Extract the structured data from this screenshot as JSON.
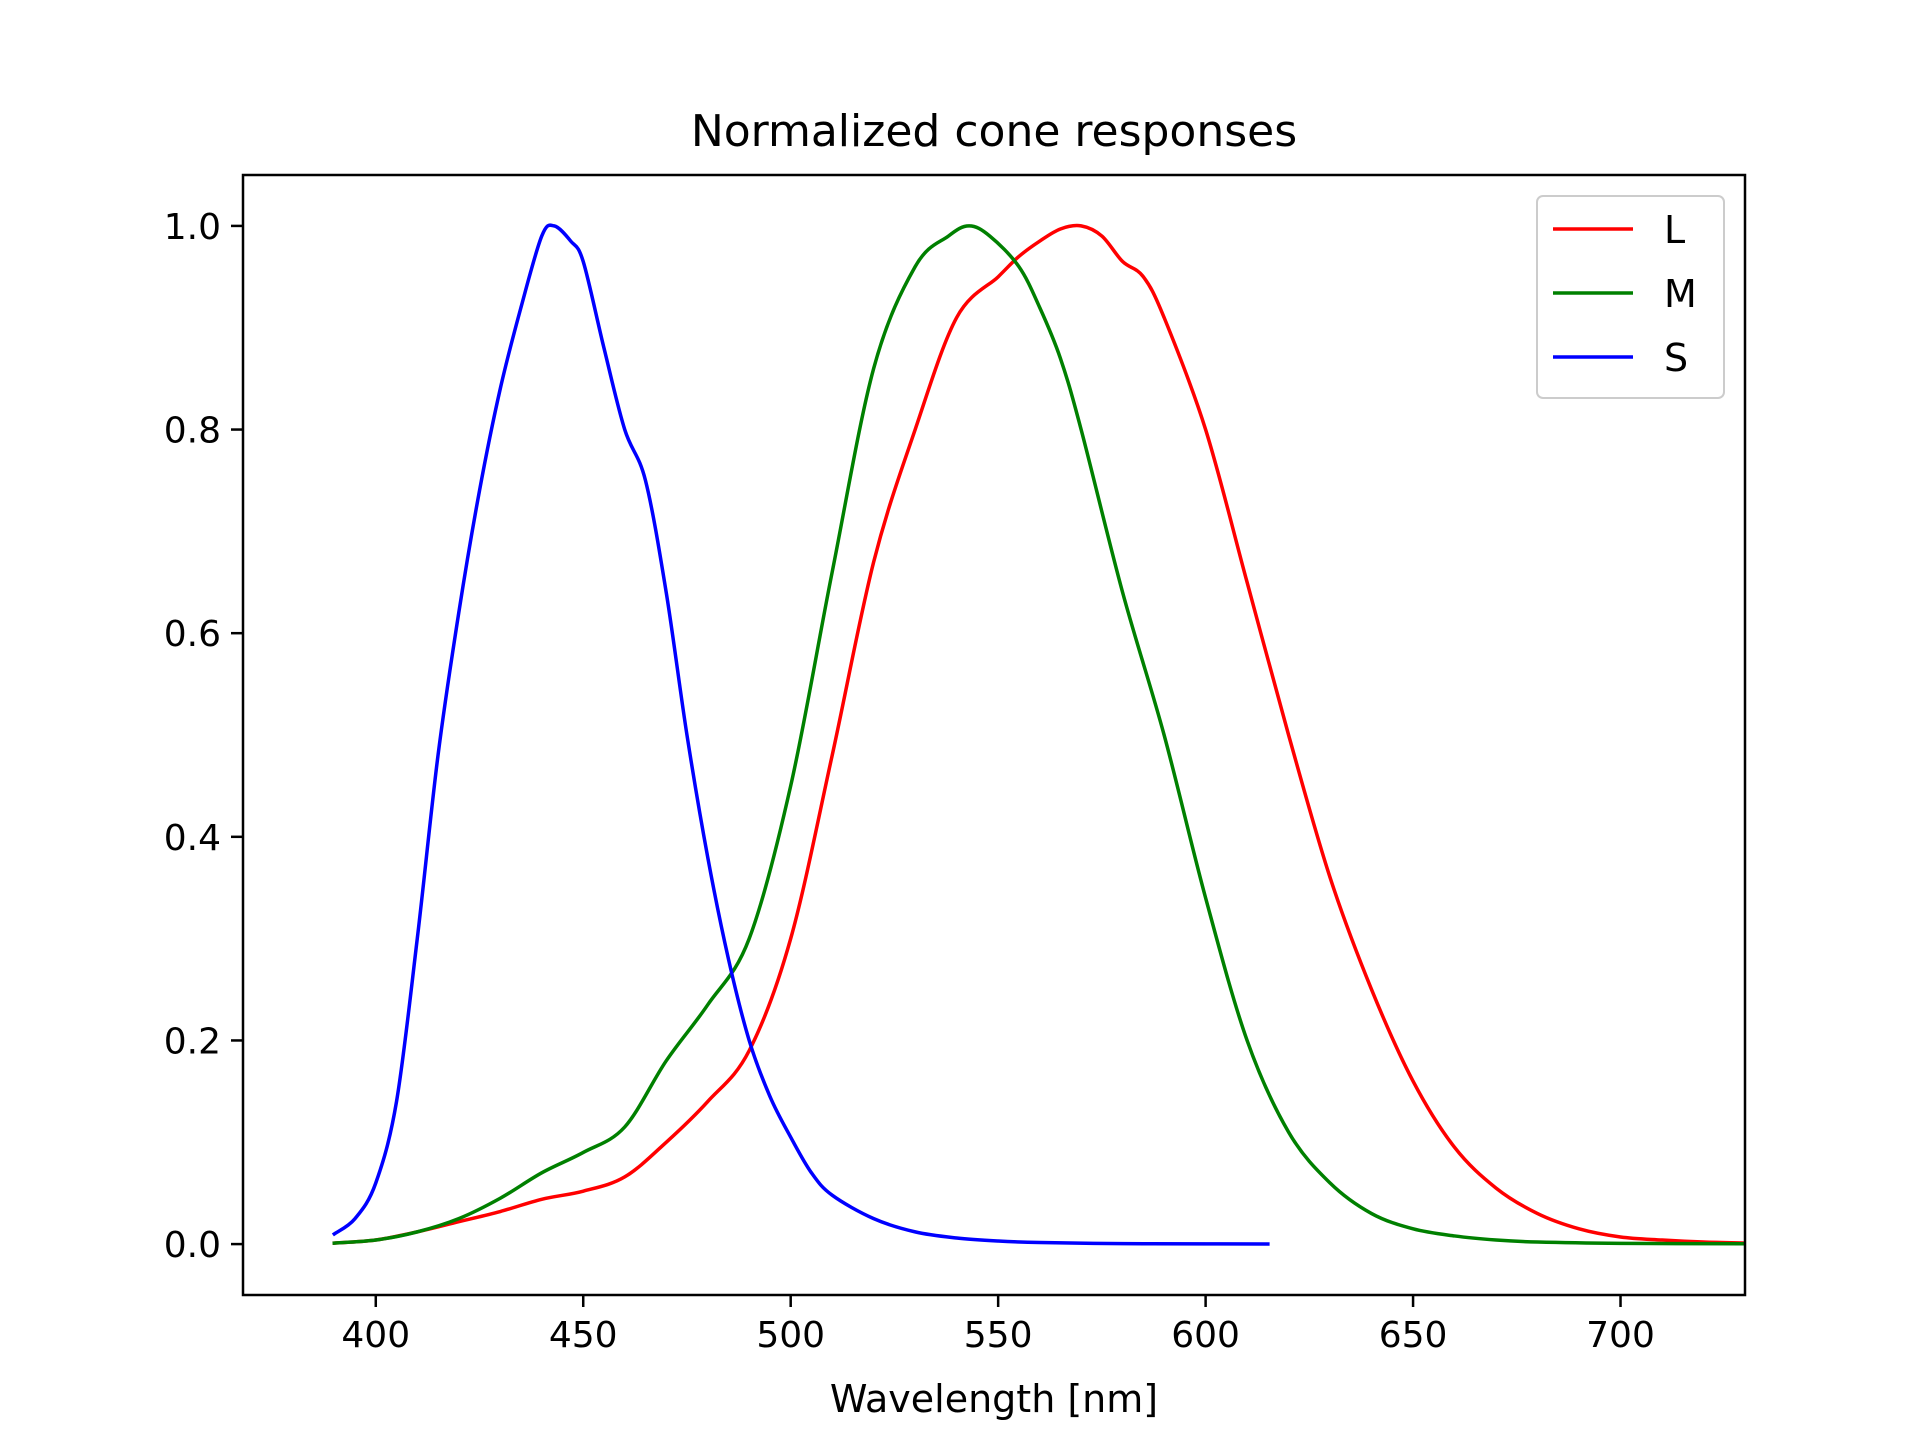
{
  "chart_data": {
    "type": "line",
    "title": "Normalized cone responses",
    "xlabel": "Wavelength [nm]",
    "ylabel": "",
    "xlim": [
      368,
      730
    ],
    "ylim": [
      -0.05,
      1.05
    ],
    "xticks": [
      400,
      450,
      500,
      550,
      600,
      650,
      700
    ],
    "yticks": [
      0.0,
      0.2,
      0.4,
      0.6,
      0.8,
      1.0
    ],
    "xtick_labels": [
      "400",
      "450",
      "500",
      "550",
      "600",
      "650",
      "700"
    ],
    "ytick_labels": [
      "0.0",
      "0.2",
      "0.4",
      "0.6",
      "0.8",
      "1.0"
    ],
    "grid": false,
    "legend_position": "top-right",
    "series": [
      {
        "name": "L",
        "color": "#ff0000",
        "points": [
          [
            390,
            0.001
          ],
          [
            400,
            0.004
          ],
          [
            410,
            0.012
          ],
          [
            420,
            0.022
          ],
          [
            430,
            0.032
          ],
          [
            440,
            0.044
          ],
          [
            450,
            0.052
          ],
          [
            460,
            0.066
          ],
          [
            470,
            0.1
          ],
          [
            480,
            0.14
          ],
          [
            490,
            0.19
          ],
          [
            500,
            0.3
          ],
          [
            510,
            0.48
          ],
          [
            520,
            0.67
          ],
          [
            530,
            0.8
          ],
          [
            540,
            0.91
          ],
          [
            550,
            0.95
          ],
          [
            555,
            0.97
          ],
          [
            560,
            0.985
          ],
          [
            565,
            0.997
          ],
          [
            570,
            1.0
          ],
          [
            575,
            0.99
          ],
          [
            580,
            0.965
          ],
          [
            585,
            0.95
          ],
          [
            590,
            0.91
          ],
          [
            600,
            0.8
          ],
          [
            610,
            0.65
          ],
          [
            620,
            0.5
          ],
          [
            630,
            0.36
          ],
          [
            640,
            0.25
          ],
          [
            650,
            0.16
          ],
          [
            660,
            0.095
          ],
          [
            670,
            0.055
          ],
          [
            680,
            0.03
          ],
          [
            690,
            0.015
          ],
          [
            700,
            0.007
          ],
          [
            710,
            0.004
          ],
          [
            720,
            0.002
          ],
          [
            730,
            0.001
          ]
        ]
      },
      {
        "name": "M",
        "color": "#008000",
        "points": [
          [
            390,
            0.001
          ],
          [
            400,
            0.004
          ],
          [
            410,
            0.012
          ],
          [
            420,
            0.025
          ],
          [
            430,
            0.045
          ],
          [
            440,
            0.07
          ],
          [
            450,
            0.09
          ],
          [
            460,
            0.115
          ],
          [
            470,
            0.18
          ],
          [
            480,
            0.235
          ],
          [
            490,
            0.3
          ],
          [
            500,
            0.45
          ],
          [
            510,
            0.66
          ],
          [
            520,
            0.86
          ],
          [
            530,
            0.96
          ],
          [
            538,
            0.99
          ],
          [
            543,
            1.0
          ],
          [
            548,
            0.99
          ],
          [
            555,
            0.96
          ],
          [
            560,
            0.92
          ],
          [
            565,
            0.87
          ],
          [
            570,
            0.8
          ],
          [
            580,
            0.64
          ],
          [
            590,
            0.5
          ],
          [
            600,
            0.34
          ],
          [
            610,
            0.2
          ],
          [
            620,
            0.11
          ],
          [
            630,
            0.06
          ],
          [
            640,
            0.03
          ],
          [
            650,
            0.015
          ],
          [
            660,
            0.008
          ],
          [
            670,
            0.004
          ],
          [
            680,
            0.002
          ],
          [
            700,
            0.0007
          ],
          [
            730,
            0.0003
          ]
        ]
      },
      {
        "name": "S",
        "color": "#0000ff",
        "points": [
          [
            390,
            0.01
          ],
          [
            395,
            0.025
          ],
          [
            400,
            0.06
          ],
          [
            405,
            0.14
          ],
          [
            410,
            0.3
          ],
          [
            415,
            0.48
          ],
          [
            420,
            0.62
          ],
          [
            425,
            0.74
          ],
          [
            430,
            0.84
          ],
          [
            435,
            0.92
          ],
          [
            440,
            0.99
          ],
          [
            443,
            1.0
          ],
          [
            447,
            0.985
          ],
          [
            450,
            0.965
          ],
          [
            455,
            0.88
          ],
          [
            460,
            0.8
          ],
          [
            465,
            0.75
          ],
          [
            470,
            0.64
          ],
          [
            475,
            0.5
          ],
          [
            480,
            0.38
          ],
          [
            485,
            0.28
          ],
          [
            490,
            0.2
          ],
          [
            495,
            0.145
          ],
          [
            500,
            0.105
          ],
          [
            505,
            0.07
          ],
          [
            510,
            0.048
          ],
          [
            520,
            0.025
          ],
          [
            530,
            0.012
          ],
          [
            540,
            0.006
          ],
          [
            550,
            0.003
          ],
          [
            560,
            0.0015
          ],
          [
            580,
            0.0005
          ],
          [
            600,
            0.0002
          ],
          [
            615,
            0.0001
          ]
        ]
      }
    ]
  }
}
